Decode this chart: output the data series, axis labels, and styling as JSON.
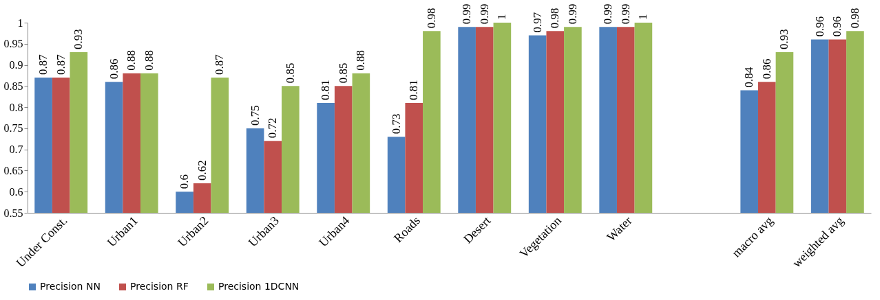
{
  "chart_data": {
    "type": "bar",
    "categories": [
      "Under Const.",
      "Urban1",
      "Urban2",
      "Urban3",
      "Urban4",
      "Roads",
      "Desert",
      "Vegetation",
      "Water",
      null,
      "macro avg",
      "weighted avg"
    ],
    "series": [
      {
        "name": "Precision NN",
        "color": "#4f81bd",
        "values": [
          0.87,
          0.86,
          0.6,
          0.75,
          0.81,
          0.73,
          0.99,
          0.97,
          0.99,
          null,
          0.84,
          0.96
        ]
      },
      {
        "name": "Precision RF",
        "color": "#c0504d",
        "values": [
          0.87,
          0.88,
          0.62,
          0.72,
          0.85,
          0.81,
          0.99,
          0.98,
          0.99,
          null,
          0.86,
          0.96
        ]
      },
      {
        "name": "Precision 1DCNN",
        "color": "#9bbb59",
        "values": [
          0.93,
          0.88,
          0.87,
          0.85,
          0.88,
          0.98,
          1,
          0.99,
          1,
          null,
          0.93,
          0.98
        ]
      }
    ],
    "ylim": [
      0.55,
      1
    ],
    "yticks": [
      0.55,
      0.6,
      0.65,
      0.7,
      0.75,
      0.8,
      0.85,
      0.9,
      0.95,
      1
    ],
    "grid": false,
    "legend": "bottom",
    "data_labels": true
  }
}
